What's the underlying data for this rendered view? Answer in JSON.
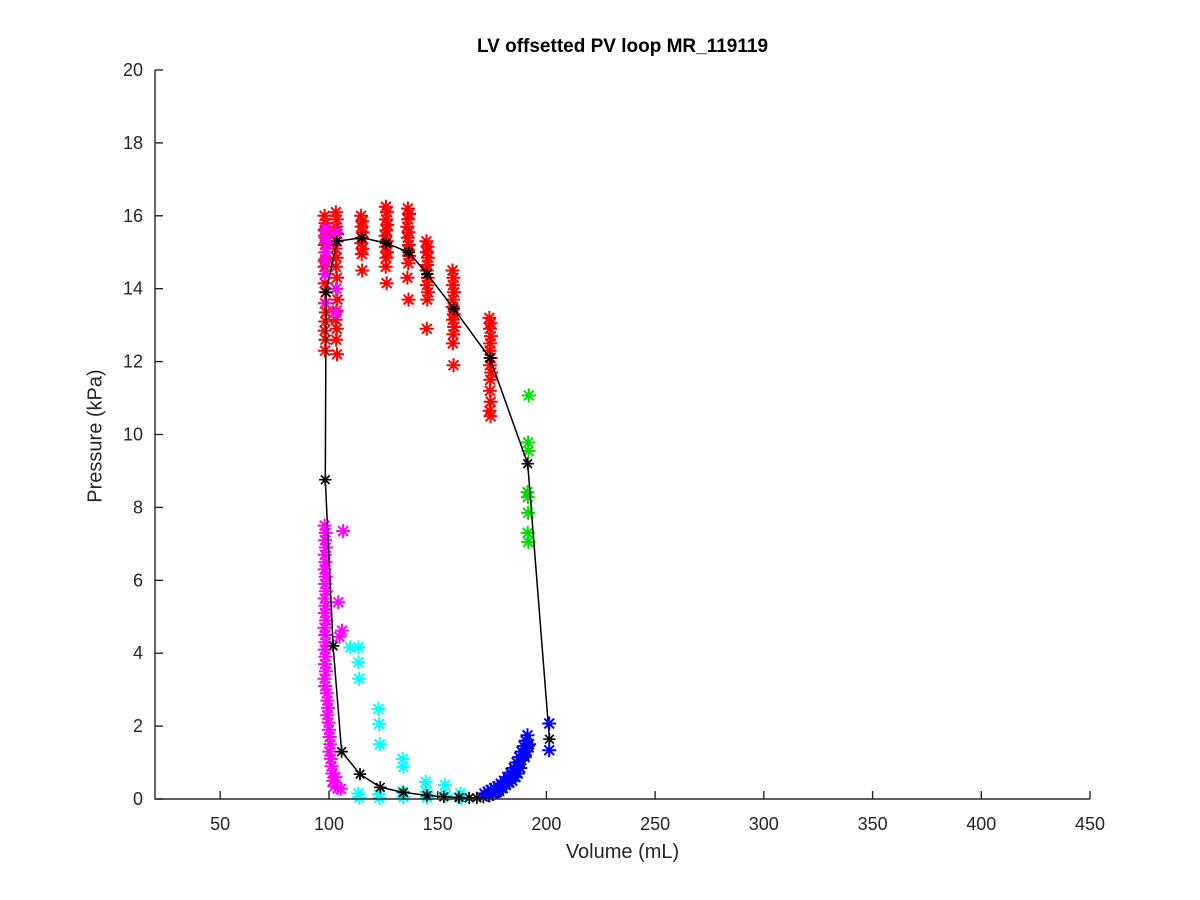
{
  "chart_data": {
    "type": "scatter",
    "title": "LV offsetted PV loop MR_119119",
    "xlabel": "Volume (mL)",
    "ylabel": "Pressure (kPa)",
    "xlim": [
      20,
      450
    ],
    "ylim": [
      0,
      20
    ],
    "xticks": [
      50,
      100,
      150,
      200,
      250,
      300,
      350,
      400,
      450
    ],
    "yticks": [
      0,
      2,
      4,
      6,
      8,
      10,
      12,
      14,
      16,
      18,
      20
    ],
    "grid": false,
    "legend_position": "none",
    "marker_style": "asterisk",
    "colors": {
      "background": "#FFFFFF",
      "axis": "#262626",
      "title": "#000000",
      "tick_label": "#262626"
    },
    "series": [
      {
        "name": "red-cluster",
        "color": "#FF0000",
        "line": false,
        "marker_size": 7,
        "stroke": 2,
        "points": [
          [
            98.0,
            16.0
          ],
          [
            98.4,
            15.8
          ],
          [
            98.1,
            15.6
          ],
          [
            98.5,
            15.4
          ],
          [
            98.2,
            15.2
          ],
          [
            98.6,
            15.0
          ],
          [
            98.3,
            14.8
          ],
          [
            98.0,
            14.6
          ],
          [
            98.4,
            14.4
          ],
          [
            98.1,
            14.15
          ],
          [
            98.5,
            13.9
          ],
          [
            98.2,
            13.6
          ],
          [
            98.6,
            13.35
          ],
          [
            98.3,
            13.1
          ],
          [
            98.0,
            12.85
          ],
          [
            98.4,
            12.6
          ],
          [
            98.2,
            12.3
          ],
          [
            103.2,
            16.1
          ],
          [
            103.6,
            15.9
          ],
          [
            103.3,
            15.7
          ],
          [
            103.8,
            15.5
          ],
          [
            103.4,
            15.3
          ],
          [
            103.0,
            15.1
          ],
          [
            103.5,
            14.85
          ],
          [
            103.2,
            14.6
          ],
          [
            103.7,
            14.3
          ],
          [
            103.3,
            14.0
          ],
          [
            103.9,
            13.7
          ],
          [
            103.5,
            13.4
          ],
          [
            103.1,
            13.15
          ],
          [
            103.6,
            12.9
          ],
          [
            103.3,
            12.6
          ],
          [
            103.7,
            12.2
          ],
          [
            114.8,
            16.0
          ],
          [
            115.3,
            15.85
          ],
          [
            115.0,
            15.7
          ],
          [
            115.5,
            15.55
          ],
          [
            115.1,
            15.4
          ],
          [
            114.9,
            15.25
          ],
          [
            115.4,
            15.1
          ],
          [
            115.1,
            14.95
          ],
          [
            115.3,
            14.5
          ],
          [
            126.2,
            16.25
          ],
          [
            126.7,
            16.1
          ],
          [
            126.3,
            15.9
          ],
          [
            126.8,
            15.75
          ],
          [
            126.4,
            15.6
          ],
          [
            126.0,
            15.45
          ],
          [
            126.6,
            15.3
          ],
          [
            126.2,
            15.15
          ],
          [
            126.7,
            15.0
          ],
          [
            126.4,
            14.85
          ],
          [
            126.1,
            14.6
          ],
          [
            126.5,
            14.15
          ],
          [
            136.3,
            16.2
          ],
          [
            136.8,
            16.05
          ],
          [
            136.4,
            15.9
          ],
          [
            136.0,
            15.7
          ],
          [
            136.6,
            15.55
          ],
          [
            136.2,
            15.4
          ],
          [
            136.7,
            15.2
          ],
          [
            136.4,
            15.05
          ],
          [
            136.9,
            14.9
          ],
          [
            136.5,
            14.7
          ],
          [
            136.1,
            14.3
          ],
          [
            136.6,
            13.7
          ],
          [
            144.8,
            15.3
          ],
          [
            145.3,
            15.15
          ],
          [
            145.0,
            15.0
          ],
          [
            145.5,
            14.85
          ],
          [
            145.1,
            14.65
          ],
          [
            144.9,
            14.5
          ],
          [
            145.4,
            14.3
          ],
          [
            145.0,
            14.1
          ],
          [
            145.6,
            13.9
          ],
          [
            145.2,
            13.7
          ],
          [
            145.0,
            12.9
          ],
          [
            156.8,
            14.5
          ],
          [
            157.3,
            14.3
          ],
          [
            157.0,
            14.1
          ],
          [
            157.5,
            13.9
          ],
          [
            157.1,
            13.7
          ],
          [
            156.9,
            13.5
          ],
          [
            157.4,
            13.3
          ],
          [
            157.0,
            13.15
          ],
          [
            157.6,
            12.95
          ],
          [
            157.2,
            12.75
          ],
          [
            157.0,
            12.5
          ],
          [
            157.3,
            11.9
          ],
          [
            173.8,
            13.2
          ],
          [
            174.3,
            13.05
          ],
          [
            174.0,
            12.9
          ],
          [
            174.5,
            12.7
          ],
          [
            174.1,
            12.5
          ],
          [
            173.9,
            12.3
          ],
          [
            174.4,
            12.1
          ],
          [
            174.0,
            11.9
          ],
          [
            174.6,
            11.7
          ],
          [
            174.2,
            11.5
          ],
          [
            174.0,
            11.2
          ],
          [
            174.4,
            10.9
          ],
          [
            173.9,
            10.65
          ],
          [
            174.3,
            10.5
          ]
        ]
      },
      {
        "name": "magenta-cluster",
        "color": "#FF00FF",
        "line": false,
        "marker_size": 7,
        "stroke": 2,
        "points": [
          [
            98.4,
            15.65
          ],
          [
            98.1,
            15.45
          ],
          [
            98.6,
            15.25
          ],
          [
            98.3,
            15.0
          ],
          [
            98.0,
            14.75
          ],
          [
            103.2,
            15.55
          ],
          [
            103.6,
            15.3
          ],
          [
            98.2,
            14.4
          ],
          [
            103.4,
            14.0
          ],
          [
            98.5,
            13.6
          ],
          [
            103.1,
            13.35
          ],
          [
            98.0,
            7.5
          ],
          [
            98.5,
            7.3
          ],
          [
            98.2,
            7.1
          ],
          [
            98.6,
            6.9
          ],
          [
            98.1,
            6.7
          ],
          [
            98.4,
            6.5
          ],
          [
            98.0,
            6.3
          ],
          [
            98.5,
            6.1
          ],
          [
            98.3,
            5.9
          ],
          [
            98.6,
            5.7
          ],
          [
            98.1,
            5.5
          ],
          [
            98.4,
            5.3
          ],
          [
            98.2,
            5.1
          ],
          [
            98.6,
            4.9
          ],
          [
            98.0,
            4.7
          ],
          [
            98.3,
            4.5
          ],
          [
            98.5,
            4.3
          ],
          [
            98.1,
            4.1
          ],
          [
            98.4,
            3.9
          ],
          [
            98.2,
            3.7
          ],
          [
            98.6,
            3.5
          ],
          [
            98.0,
            3.3
          ],
          [
            98.3,
            3.1
          ],
          [
            99.0,
            2.9
          ],
          [
            99.3,
            2.7
          ],
          [
            99.6,
            2.5
          ],
          [
            99.2,
            2.3
          ],
          [
            99.8,
            2.1
          ],
          [
            100.0,
            1.9
          ],
          [
            100.3,
            1.7
          ],
          [
            100.6,
            1.5
          ],
          [
            100.2,
            1.3
          ],
          [
            100.8,
            1.1
          ],
          [
            101.2,
            0.9
          ],
          [
            101.6,
            0.7
          ],
          [
            102.0,
            0.5
          ],
          [
            102.5,
            0.35
          ],
          [
            103.0,
            0.6
          ],
          [
            104.0,
            0.3
          ],
          [
            105.5,
            0.28
          ],
          [
            106.5,
            7.35
          ],
          [
            104.3,
            5.4
          ],
          [
            106.0,
            4.62
          ],
          [
            104.8,
            4.45
          ]
        ]
      },
      {
        "name": "cyan-cluster",
        "color": "#00FFFF",
        "line": false,
        "marker_size": 7,
        "stroke": 2,
        "points": [
          [
            109.8,
            4.16
          ],
          [
            113.6,
            4.16
          ],
          [
            113.6,
            3.75
          ],
          [
            113.9,
            3.3
          ],
          [
            113.5,
            0.15
          ],
          [
            114.0,
            0.04
          ],
          [
            122.8,
            2.47
          ],
          [
            123.1,
            2.06
          ],
          [
            123.4,
            1.5
          ],
          [
            123.0,
            0.12
          ],
          [
            123.3,
            0.03
          ],
          [
            133.9,
            1.1
          ],
          [
            134.2,
            0.88
          ],
          [
            133.8,
            0.2
          ],
          [
            134.3,
            0.05
          ],
          [
            144.5,
            0.47
          ],
          [
            144.8,
            0.2
          ],
          [
            145.1,
            0.04
          ],
          [
            153.3,
            0.38
          ],
          [
            153.7,
            0.1
          ],
          [
            160.4,
            0.15
          ],
          [
            160.8,
            0.03
          ]
        ]
      },
      {
        "name": "green-cluster",
        "color": "#00DD00",
        "line": false,
        "marker_size": 7,
        "stroke": 2,
        "points": [
          [
            191.9,
            11.07
          ],
          [
            191.6,
            9.78
          ],
          [
            191.8,
            9.55
          ],
          [
            191.3,
            8.42
          ],
          [
            191.5,
            8.28
          ],
          [
            191.6,
            7.85
          ],
          [
            191.4,
            7.3
          ],
          [
            191.7,
            7.05
          ]
        ]
      },
      {
        "name": "pv-loop-line",
        "color": "#000000",
        "line": true,
        "line_width": 1.5,
        "marker_size": 6.2,
        "stroke": 1.7,
        "points": [
          [
            201.4,
            1.64
          ],
          [
            191.4,
            9.2
          ],
          [
            174.0,
            12.1
          ],
          [
            157.4,
            13.45
          ],
          [
            145.2,
            14.4
          ],
          [
            136.7,
            15.0
          ],
          [
            126.3,
            15.25
          ],
          [
            115.1,
            15.4
          ],
          [
            103.6,
            15.3
          ],
          [
            98.7,
            13.9
          ],
          [
            98.3,
            8.76
          ],
          [
            101.9,
            4.2
          ],
          [
            105.8,
            1.3
          ],
          [
            114.3,
            0.68
          ],
          [
            123.6,
            0.32
          ],
          [
            134.3,
            0.18
          ],
          [
            145.1,
            0.1
          ],
          [
            152.8,
            0.06
          ],
          [
            159.8,
            0.04
          ],
          [
            164.5,
            0.03
          ],
          [
            168.0,
            0.03
          ],
          [
            171.0,
            0.05
          ],
          [
            173.5,
            0.08
          ],
          [
            175.5,
            0.12
          ],
          [
            177.5,
            0.18
          ],
          [
            179.5,
            0.28
          ],
          [
            181.5,
            0.4
          ],
          [
            183.5,
            0.55
          ],
          [
            185.5,
            0.72
          ],
          [
            187.3,
            0.9
          ],
          [
            188.8,
            1.05
          ],
          [
            190.0,
            1.2
          ],
          [
            191.0,
            1.32
          ],
          [
            191.8,
            1.45
          ]
        ]
      },
      {
        "name": "blue-cluster",
        "color": "#0000FF",
        "line": false,
        "marker_size": 7,
        "stroke": 2,
        "points": [
          [
            171.5,
            0.15
          ],
          [
            173.0,
            0.2
          ],
          [
            174.5,
            0.25
          ],
          [
            176.0,
            0.3
          ],
          [
            177.5,
            0.35
          ],
          [
            179.0,
            0.42
          ],
          [
            180.5,
            0.5
          ],
          [
            182.0,
            0.6
          ],
          [
            183.5,
            0.72
          ],
          [
            185.0,
            0.85
          ],
          [
            186.3,
            1.0
          ],
          [
            187.5,
            1.15
          ],
          [
            188.6,
            1.3
          ],
          [
            189.6,
            1.45
          ],
          [
            190.5,
            1.6
          ],
          [
            191.3,
            1.75
          ],
          [
            190.0,
            1.15
          ],
          [
            188.0,
            0.85
          ],
          [
            185.8,
            0.6
          ],
          [
            183.0,
            0.45
          ],
          [
            180.0,
            0.3
          ],
          [
            176.8,
            0.18
          ],
          [
            173.8,
            0.1
          ],
          [
            192.0,
            1.5
          ],
          [
            191.0,
            1.3
          ],
          [
            186.9,
            0.7
          ],
          [
            184.3,
            0.5
          ],
          [
            181.3,
            0.38
          ],
          [
            178.3,
            0.22
          ],
          [
            175.3,
            0.14
          ],
          [
            201.3,
            2.07
          ],
          [
            201.3,
            1.34
          ]
        ]
      }
    ]
  }
}
